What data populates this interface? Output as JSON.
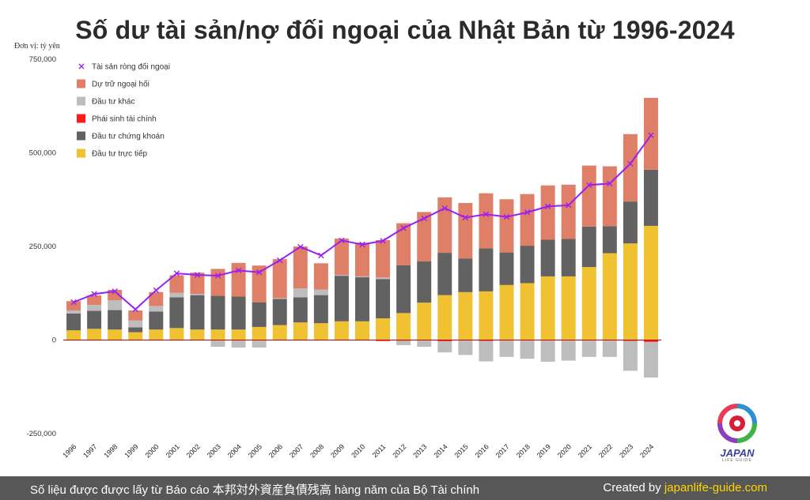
{
  "title": "Số dư tài sản/nợ đối ngoại của Nhật Bản từ 1996-2024",
  "unit_label": "Đơn vị: tỷ yên",
  "footer": {
    "source": "Số liệu được được lấy từ Báo cáo 本邦対外資産負債残高 hàng năm của Bộ Tài chính",
    "credit_prefix": "Created by ",
    "credit_site": "japanlife-guide.com"
  },
  "logo": {
    "text": "JAPAN",
    "sub": "LIFE GUIDE"
  },
  "chart_data": {
    "type": "bar",
    "stacked": true,
    "categories": [
      "1996",
      "1997",
      "1998",
      "1999",
      "2000",
      "2001",
      "2002",
      "2003",
      "2004",
      "2005",
      "2006",
      "2007",
      "2008",
      "2009",
      "2010",
      "2011",
      "2012",
      "2013",
      "2014",
      "2015",
      "2016",
      "2017",
      "2018",
      "2019",
      "2020",
      "2021",
      "2022",
      "2023",
      "2024"
    ],
    "ylim": [
      -250000,
      750000
    ],
    "yticks": [
      -250000,
      0,
      250000,
      500000,
      750000
    ],
    "ytick_labels": [
      "-250,000",
      "0",
      "250,000",
      "500,000",
      "750,000"
    ],
    "grid": false,
    "legend_position": "top-left",
    "series": [
      {
        "name": "Đầu tư trực tiếp",
        "color": "#f0c131",
        "values": [
          26000,
          30000,
          28000,
          21000,
          28000,
          32000,
          28000,
          28000,
          28000,
          35000,
          40000,
          47000,
          45000,
          50000,
          50000,
          58000,
          72000,
          100000,
          120000,
          128000,
          130000,
          147000,
          152000,
          170000,
          170000,
          195000,
          232000,
          258000,
          305000
        ]
      },
      {
        "name": "Đầu tư chứng khoán",
        "color": "#626262",
        "values": [
          45000,
          48000,
          52000,
          13000,
          48000,
          82000,
          92000,
          90000,
          88000,
          66000,
          70000,
          67000,
          75000,
          122000,
          118000,
          105000,
          128000,
          110000,
          113000,
          90000,
          115000,
          87000,
          100000,
          98000,
          100000,
          108000,
          72000,
          112000,
          150000
        ]
      },
      {
        "name": "Phái sinh tài chính",
        "color": "#ff1a1a",
        "values": [
          0,
          0,
          0,
          0,
          0,
          0,
          0,
          0,
          0,
          0,
          0,
          0,
          0,
          0,
          0,
          -2000,
          -1500,
          0,
          -3000,
          0,
          -2000,
          0,
          0,
          0,
          0,
          0,
          0,
          -2000,
          -5000
        ]
      },
      {
        "name": "Đầu tư khác",
        "color": "#bdbdbd",
        "values": [
          8000,
          16000,
          26000,
          18000,
          15000,
          12000,
          3000,
          -18000,
          -20000,
          -20000,
          2000,
          24000,
          15000,
          2000,
          2000,
          4000,
          -12000,
          -18000,
          -30000,
          -40000,
          -55000,
          -45000,
          -50000,
          -58000,
          -55000,
          -45000,
          -45000,
          -80000,
          -95000
        ]
      },
      {
        "name": "Dự trữ ngoại hối",
        "color": "#e07f68",
        "values": [
          25000,
          25000,
          28000,
          27000,
          37000,
          47000,
          57000,
          72000,
          90000,
          98000,
          104000,
          112000,
          70000,
          97000,
          90000,
          100000,
          112000,
          132000,
          148000,
          148000,
          147000,
          142000,
          138000,
          145000,
          145000,
          163000,
          160000,
          180000,
          192000
        ]
      },
      {
        "name": "Tài sản ròng đối ngoại",
        "color": "#9b1ff2",
        "type": "line",
        "marker": "x",
        "values": [
          101000,
          123000,
          130000,
          82000,
          133000,
          178000,
          174000,
          172000,
          186000,
          181000,
          213000,
          249000,
          226000,
          266000,
          255000,
          265000,
          299000,
          325000,
          352000,
          327000,
          336000,
          329000,
          341000,
          357000,
          360000,
          414000,
          418000,
          471000,
          547000
        ]
      }
    ]
  }
}
